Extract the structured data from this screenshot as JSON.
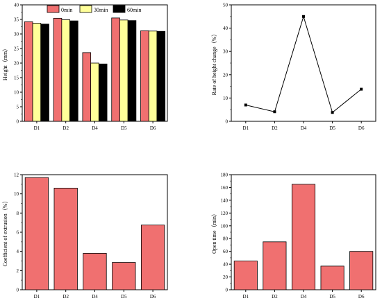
{
  "chart_data": [
    {
      "type": "bar",
      "categories": [
        "D1",
        "D2",
        "D4",
        "D5",
        "D6"
      ],
      "series": [
        {
          "name": "0min",
          "color": "#f07070",
          "values": [
            34.2,
            35.4,
            23.6,
            35.5,
            31.1
          ]
        },
        {
          "name": "30min",
          "color": "#ffff99",
          "values": [
            33.7,
            34.9,
            20.0,
            34.8,
            31.0
          ]
        },
        {
          "name": "60min",
          "color": "#000000",
          "values": [
            33.4,
            34.5,
            19.7,
            34.6,
            30.9
          ]
        }
      ],
      "title": "",
      "xlabel": "",
      "ylabel": "Height（mm）",
      "ylim": [
        0,
        40
      ],
      "yticks": [
        0,
        5,
        10,
        15,
        20,
        25,
        30,
        35,
        40
      ],
      "legend": "top-inside",
      "grid": false
    },
    {
      "type": "line",
      "x": [
        "D1",
        "D2",
        "D4",
        "D5",
        "D6"
      ],
      "series": [
        {
          "color": "#000000",
          "values": [
            7.0,
            4.1,
            45.0,
            3.8,
            13.8
          ]
        }
      ],
      "title": "",
      "xlabel": "",
      "ylabel": "Rate of height change（%）",
      "ylim": [
        0,
        50
      ],
      "yticks": [
        0,
        10,
        20,
        30,
        40,
        50
      ],
      "grid": false
    },
    {
      "type": "bar",
      "categories": [
        "D1",
        "D2",
        "D4",
        "D5",
        "D6"
      ],
      "series": [
        {
          "color": "#f07070",
          "values": [
            11.7,
            10.6,
            3.8,
            2.85,
            6.75
          ]
        }
      ],
      "title": "",
      "xlabel": "",
      "ylabel": "Coefficient of extrusion（%）",
      "ylim": [
        0,
        12
      ],
      "yticks": [
        0,
        2,
        4,
        6,
        8,
        10,
        12
      ],
      "grid": false
    },
    {
      "type": "bar",
      "categories": [
        "D1",
        "D2",
        "D4",
        "D5",
        "D6"
      ],
      "series": [
        {
          "color": "#f07070",
          "values": [
            45,
            75,
            165,
            37,
            60
          ]
        }
      ],
      "title": "",
      "xlabel": "",
      "ylabel": "Open time（min）",
      "ylim": [
        0,
        180
      ],
      "yticks": [
        0,
        20,
        40,
        60,
        80,
        100,
        120,
        140,
        160,
        180
      ],
      "grid": false
    }
  ]
}
